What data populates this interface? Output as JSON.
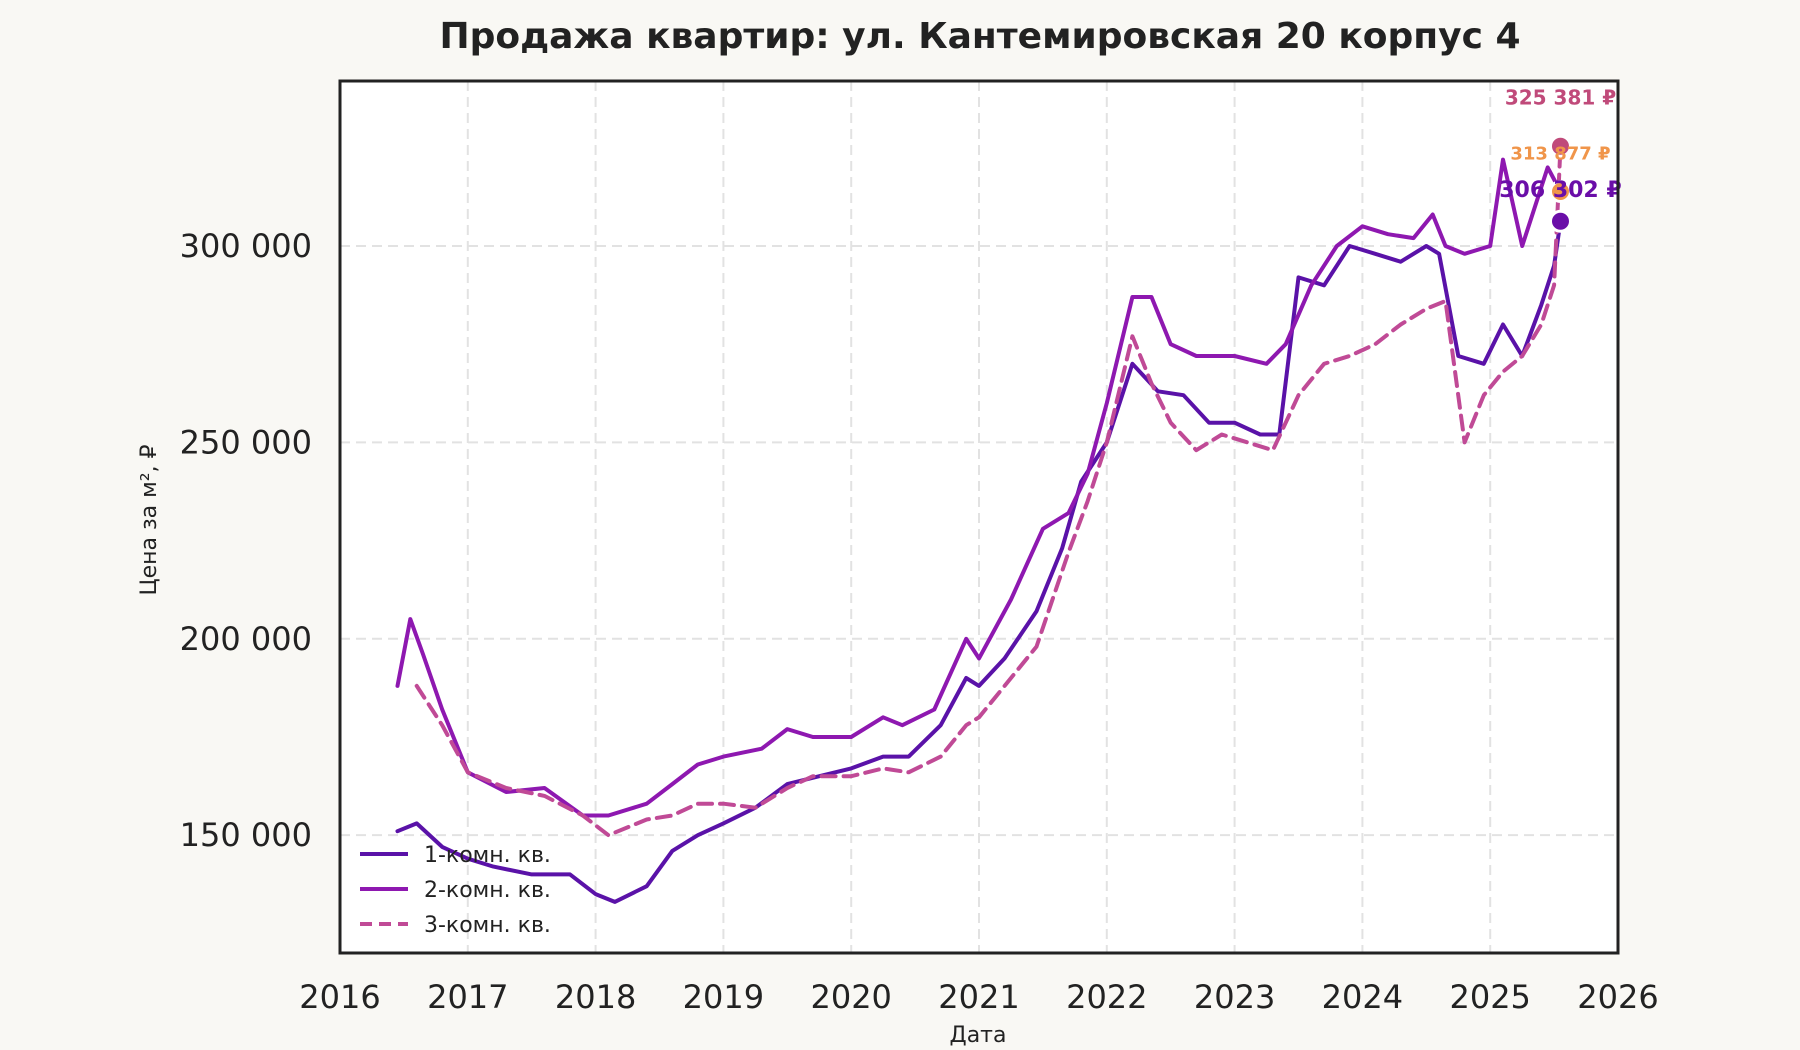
{
  "chart_data": {
    "type": "line",
    "title": "Продажа квартир: ул. Кантемировская 20 корпус 4",
    "xlabel": "Дата",
    "ylabel": "Цена за м², ₽",
    "xlim": [
      2016,
      2026
    ],
    "ylim": [
      120000,
      342000
    ],
    "x_ticks": [
      "2016",
      "2017",
      "2018",
      "2019",
      "2020",
      "2021",
      "2022",
      "2023",
      "2024",
      "2025",
      "2026"
    ],
    "y_ticks": [
      "150 000",
      "200 000",
      "250 000",
      "300 000"
    ],
    "y_tick_values": [
      150000,
      200000,
      250000,
      300000
    ],
    "grid": true,
    "legend_position": "bottom-left",
    "series": [
      {
        "name": "1-комн. кв.",
        "color": "#5a12a8",
        "dash": "solid",
        "x": [
          2016.45,
          2016.6,
          2016.8,
          2017.0,
          2017.2,
          2017.5,
          2017.8,
          2018.0,
          2018.15,
          2018.4,
          2018.6,
          2018.8,
          2019.0,
          2019.25,
          2019.5,
          2019.75,
          2020.0,
          2020.25,
          2020.45,
          2020.7,
          2020.9,
          2021.0,
          2021.2,
          2021.45,
          2021.65,
          2021.8,
          2022.0,
          2022.2,
          2022.4,
          2022.6,
          2022.8,
          2023.0,
          2023.2,
          2023.35,
          2023.5,
          2023.7,
          2023.9,
          2024.1,
          2024.3,
          2024.5,
          2024.6,
          2024.75,
          2024.95,
          2025.1,
          2025.25,
          2025.4,
          2025.5,
          2025.55
        ],
        "y": [
          151000,
          153000,
          147000,
          144000,
          142000,
          140000,
          140000,
          135000,
          133000,
          137000,
          146000,
          150000,
          153000,
          157000,
          163000,
          165000,
          167000,
          170000,
          170000,
          178000,
          190000,
          188000,
          195000,
          207000,
          223000,
          240000,
          250000,
          270000,
          263000,
          262000,
          255000,
          255000,
          252000,
          252000,
          292000,
          290000,
          300000,
          298000,
          296000,
          300000,
          298000,
          272000,
          270000,
          280000,
          272000,
          285000,
          295000,
          306302
        ]
      },
      {
        "name": "2-комн. кв.",
        "color": "#8e18b0",
        "dash": "solid",
        "x": [
          2016.45,
          2016.55,
          2016.65,
          2016.8,
          2017.0,
          2017.3,
          2017.6,
          2017.9,
          2018.1,
          2018.4,
          2018.6,
          2018.8,
          2019.0,
          2019.3,
          2019.5,
          2019.7,
          2020.0,
          2020.25,
          2020.4,
          2020.65,
          2020.9,
          2021.0,
          2021.25,
          2021.5,
          2021.7,
          2021.85,
          2022.0,
          2022.2,
          2022.35,
          2022.5,
          2022.7,
          2023.0,
          2023.25,
          2023.4,
          2023.6,
          2023.8,
          2024.0,
          2024.2,
          2024.4,
          2024.55,
          2024.65,
          2024.8,
          2025.0,
          2025.1,
          2025.25,
          2025.45,
          2025.55
        ],
        "y": [
          188000,
          205000,
          196000,
          182000,
          166000,
          161000,
          162000,
          155000,
          155000,
          158000,
          163000,
          168000,
          170000,
          172000,
          177000,
          175000,
          175000,
          180000,
          178000,
          182000,
          200000,
          195000,
          210000,
          228000,
          232000,
          242000,
          260000,
          287000,
          287000,
          275000,
          272000,
          272000,
          270000,
          275000,
          290000,
          300000,
          305000,
          303000,
          302000,
          308000,
          300000,
          298000,
          300000,
          322000,
          300000,
          320000,
          313877
        ]
      },
      {
        "name": "3-комн. кв.",
        "color": "#c04a96",
        "dash": "dashed",
        "x": [
          2016.6,
          2016.8,
          2017.0,
          2017.3,
          2017.6,
          2017.9,
          2018.1,
          2018.4,
          2018.6,
          2018.8,
          2019.0,
          2019.25,
          2019.5,
          2019.7,
          2020.0,
          2020.25,
          2020.45,
          2020.7,
          2020.9,
          2021.0,
          2021.2,
          2021.45,
          2021.7,
          2021.85,
          2022.0,
          2022.2,
          2022.35,
          2022.5,
          2022.7,
          2022.9,
          2023.1,
          2023.3,
          2023.5,
          2023.7,
          2023.9,
          2024.1,
          2024.3,
          2024.5,
          2024.65,
          2024.8,
          2024.95,
          2025.1,
          2025.25,
          2025.4,
          2025.5,
          2025.55
        ],
        "y": [
          188000,
          178000,
          166000,
          162000,
          160000,
          155000,
          150000,
          154000,
          155000,
          158000,
          158000,
          157000,
          162000,
          165000,
          165000,
          167000,
          166000,
          170000,
          178000,
          180000,
          188000,
          198000,
          222000,
          235000,
          250000,
          277000,
          265000,
          255000,
          248000,
          252000,
          250000,
          248000,
          262000,
          270000,
          272000,
          275000,
          280000,
          284000,
          286000,
          250000,
          262000,
          268000,
          272000,
          280000,
          290000,
          325381
        ]
      }
    ],
    "end_labels": [
      {
        "series": "3-комн. кв.",
        "x": 2025.55,
        "value": 325381,
        "text": "325 381 ₽",
        "color": "#c04a7a"
      },
      {
        "series": "2-комн. кв.",
        "x": 2025.55,
        "value": 313877,
        "text": "313 877 ₽",
        "color": "#f0954a"
      },
      {
        "series": "1-комн. кв.",
        "x": 2025.55,
        "value": 306302,
        "text": "306 302 ₽",
        "color": "#6a0ea8"
      }
    ]
  }
}
